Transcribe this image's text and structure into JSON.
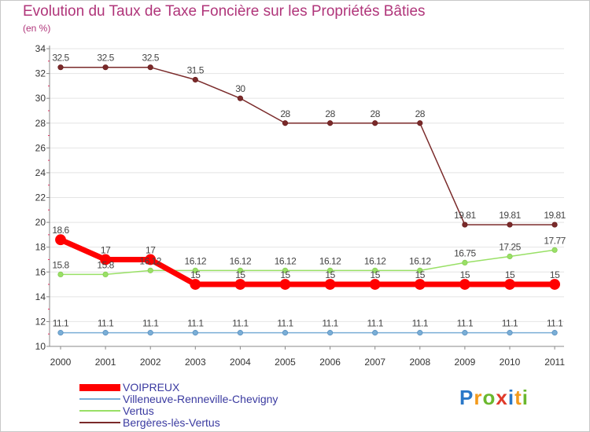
{
  "title": "Evolution du Taux de Taxe Foncière sur les Propriétés Bâties",
  "subtitle": "(en %)",
  "logo": {
    "text": "Proxiti",
    "letters": [
      "P",
      "r",
      "o",
      "x",
      "i",
      "t",
      "i"
    ],
    "colors": [
      "#2a78c8",
      "#f39a1c",
      "#6bb82e",
      "#e03a2a",
      "#2a78c8",
      "#f39a1c",
      "#6bb82e"
    ]
  },
  "chart_data": {
    "type": "line",
    "title": "Evolution du Taux de Taxe Foncière sur les Propriétés Bâties",
    "ylabel": "(en %)",
    "xlabel": "",
    "ylim": [
      10,
      34
    ],
    "yticks": [
      10,
      12,
      14,
      16,
      18,
      20,
      22,
      24,
      26,
      28,
      30,
      32,
      34
    ],
    "x": [
      "2000",
      "2001",
      "2002",
      "2003",
      "2004",
      "2005",
      "2006",
      "2007",
      "2008",
      "2009",
      "2010",
      "2011"
    ],
    "series": [
      {
        "name": "Bergères-lès-Vertus",
        "color": "#7a2a2a",
        "values": [
          32.5,
          32.5,
          32.5,
          31.5,
          30,
          28,
          28,
          28,
          28,
          19.81,
          19.81,
          19.81
        ],
        "labels": [
          "32.5",
          "32.5",
          "32.5",
          "31.5",
          "30",
          "28",
          "28",
          "28",
          "28",
          "19.81",
          "19.81",
          "19.81"
        ]
      },
      {
        "name": "Vertus",
        "color": "#99e066",
        "values": [
          15.8,
          15.8,
          16.12,
          16.12,
          16.12,
          16.12,
          16.12,
          16.12,
          16.12,
          16.75,
          17.25,
          17.77
        ],
        "labels": [
          "15.8",
          "15.8",
          "16.12",
          "16.12",
          "16.12",
          "16.12",
          "16.12",
          "16.12",
          "16.12",
          "16.75",
          "17.25",
          "17.77"
        ]
      },
      {
        "name": "Villeneuve-Renneville-Chevigny",
        "color": "#7aaed6",
        "values": [
          11.1,
          11.1,
          11.1,
          11.1,
          11.1,
          11.1,
          11.1,
          11.1,
          11.1,
          11.1,
          11.1,
          11.1
        ],
        "labels": [
          "11.1",
          "11.1",
          "11.1",
          "11.1",
          "11.1",
          "11.1",
          "11.1",
          "11.1",
          "11.1",
          "11.1",
          "11.1",
          "11.1"
        ]
      },
      {
        "name": "VOIPREUX",
        "color": "#ff0000",
        "values": [
          18.6,
          17,
          17,
          15,
          15,
          15,
          15,
          15,
          15,
          15,
          15,
          15
        ],
        "labels": [
          "18.6",
          "17",
          "17",
          "15",
          "15",
          "15",
          "15",
          "15",
          "15",
          "15",
          "15",
          "15"
        ]
      }
    ],
    "legend": [
      "VOIPREUX",
      "Villeneuve-Renneville-Chevigny",
      "Vertus",
      "Bergères-lès-Vertus"
    ],
    "legend_position": "bottom-left"
  }
}
